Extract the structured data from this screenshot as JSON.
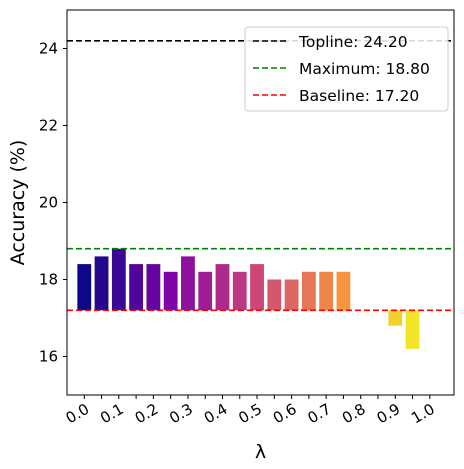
{
  "chart_data": {
    "type": "bar",
    "xlabel": "λ",
    "ylabel": "Accuracy (%)",
    "ylim": [
      15,
      25
    ],
    "yticks": [
      16,
      18,
      20,
      22,
      24
    ],
    "xlim": [
      -0.05,
      1.07
    ],
    "xticks": [
      0.0,
      0.05,
      0.1,
      0.15,
      0.2,
      0.25,
      0.3,
      0.35,
      0.4,
      0.45,
      0.5,
      0.55,
      0.6,
      0.65,
      0.7,
      0.75,
      0.8,
      0.85,
      0.9,
      0.95,
      1.0
    ],
    "xtick_labels": [
      "0.0",
      "0.1",
      "0.2",
      "0.3",
      "0.4",
      "0.5",
      "0.6",
      "0.7",
      "0.8",
      "0.9",
      "1.0"
    ],
    "x": [
      0.0,
      0.05,
      0.1,
      0.15,
      0.2,
      0.25,
      0.3,
      0.35,
      0.4,
      0.45,
      0.5,
      0.55,
      0.6,
      0.65,
      0.7,
      0.75,
      0.8,
      0.85,
      0.9,
      0.95,
      1.0
    ],
    "values": [
      18.4,
      18.6,
      18.8,
      18.4,
      18.4,
      18.2,
      18.6,
      18.2,
      18.4,
      18.2,
      18.4,
      18.0,
      18.0,
      18.2,
      18.2,
      18.2,
      null,
      null,
      16.8,
      16.2,
      null
    ],
    "bar_base": 17.2,
    "colormap": "plasma",
    "reference_lines": [
      {
        "label": "Topline: 24.20",
        "value": 24.2,
        "color": "#000000"
      },
      {
        "label": "Maximum: 18.80",
        "value": 18.8,
        "color": "#008000"
      },
      {
        "label": "Baseline: 17.20",
        "value": 17.2,
        "color": "#ff0000"
      }
    ],
    "legend_position": "top-right",
    "grid": false
  }
}
